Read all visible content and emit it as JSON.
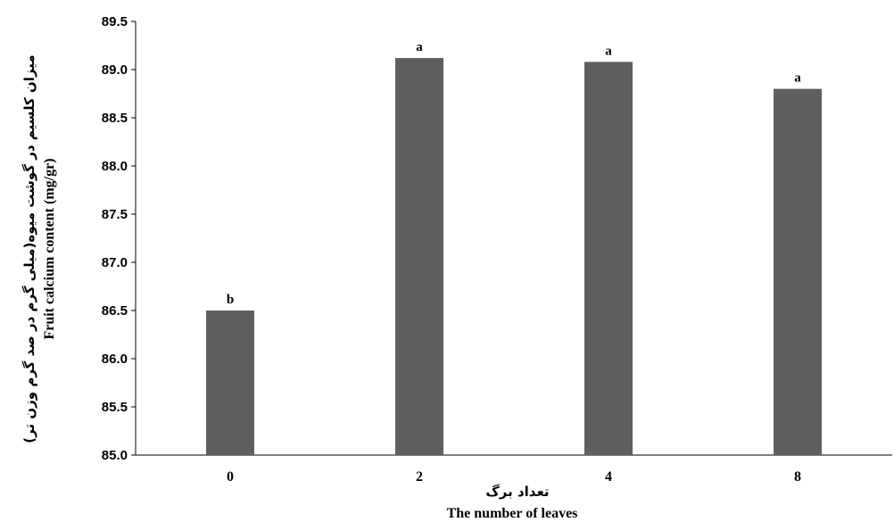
{
  "chart_data": {
    "type": "bar",
    "categories": [
      "0",
      "2",
      "4",
      "8"
    ],
    "values": [
      86.5,
      89.12,
      89.08,
      88.8
    ],
    "data_labels": [
      "b",
      "a",
      "a",
      "a"
    ],
    "ylim": [
      85.0,
      89.5
    ],
    "yticks": [
      85.0,
      85.5,
      86.0,
      86.5,
      87.0,
      87.5,
      88.0,
      88.5,
      89.0,
      89.5
    ],
    "ytick_labels": [
      "85.0",
      "85.5",
      "86.0",
      "86.5",
      "87.0",
      "87.5",
      "88.0",
      "88.5",
      "89.0",
      "89.5"
    ],
    "xlabel_fa": "تعداد برگ",
    "xlabel_en": "The number  of leaves",
    "ylabel_fa": "میزان کلسیم در گوشت میوه(میلی گرم در صد گرم وزن تر)",
    "ylabel_en": "Fruit calcium content (mg/gr)",
    "bar_color": "#5f5f5f",
    "grid": false,
    "legend": "none"
  }
}
